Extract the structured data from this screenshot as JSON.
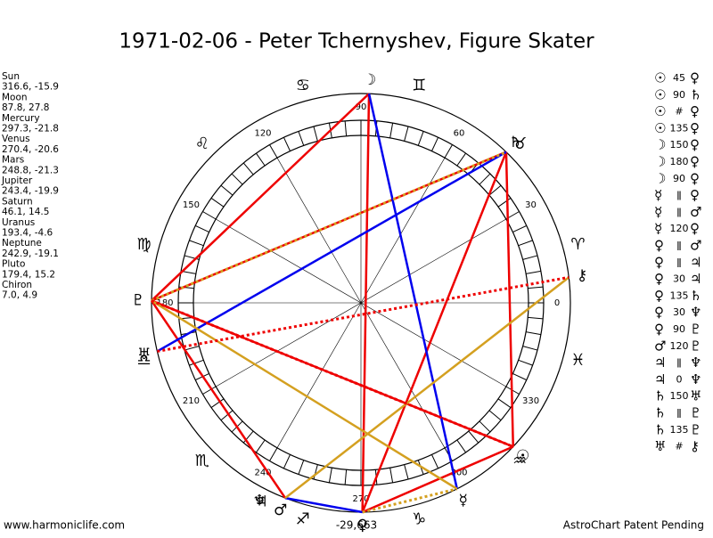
{
  "header": {
    "title": "1971-02-06 - Peter Tchernyshev, Figure Skater"
  },
  "positions": [
    {
      "name": "Sun",
      "value": "316.6, -15.9"
    },
    {
      "name": "Moon",
      "value": "87.8, 27.8"
    },
    {
      "name": "Mercury",
      "value": "297.3, -21.8"
    },
    {
      "name": "Venus",
      "value": "270.4, -20.6"
    },
    {
      "name": "Mars",
      "value": "248.8, -21.3"
    },
    {
      "name": "Jupiter",
      "value": "243.4, -19.9"
    },
    {
      "name": "Saturn",
      "value": "46.1, 14.5"
    },
    {
      "name": "Uranus",
      "value": "193.4, -4.6"
    },
    {
      "name": "Neptune",
      "value": "242.9, -19.1"
    },
    {
      "name": "Pluto",
      "value": "179.4, 15.2"
    },
    {
      "name": "Chiron",
      "value": "7.0, 4.9"
    }
  ],
  "aspects": [
    [
      "☉",
      "45",
      "♀"
    ],
    [
      "☉",
      "90",
      "♄"
    ],
    [
      "☉",
      "#",
      "♀"
    ],
    [
      "☉",
      "135",
      "♀"
    ],
    [
      "☽",
      "150",
      "♀"
    ],
    [
      "☽",
      "180",
      "♀"
    ],
    [
      "☽",
      "90",
      "♀"
    ],
    [
      "☿",
      "ǁ",
      "♀"
    ],
    [
      "☿",
      "ǁ",
      "♂"
    ],
    [
      "☿",
      "120",
      "♀"
    ],
    [
      "♀",
      "ǁ",
      "♂"
    ],
    [
      "♀",
      "ǁ",
      "♃"
    ],
    [
      "♀",
      "30",
      "♃"
    ],
    [
      "♀",
      "135",
      "♄"
    ],
    [
      "♀",
      "30",
      "♆"
    ],
    [
      "♀",
      "90",
      "♇"
    ],
    [
      "♂",
      "120",
      "♇"
    ],
    [
      "♃",
      "ǁ",
      "♆"
    ],
    [
      "♃",
      "0",
      "♆"
    ],
    [
      "♄",
      "150",
      "♅"
    ],
    [
      "♄",
      "ǁ",
      "♇"
    ],
    [
      "♄",
      "135",
      "♇"
    ],
    [
      "♅",
      "#",
      "⚷"
    ]
  ],
  "wheel": {
    "degrees": [
      "0",
      "30",
      "60",
      "90",
      "120",
      "150",
      "180",
      "210",
      "240",
      "270",
      "300",
      "330"
    ],
    "signs": [
      "♈",
      "♉",
      "♊",
      "♋",
      "♌",
      "♍",
      "♎",
      "♏",
      "♐",
      "♑",
      "♒",
      "♓"
    ],
    "planets": [
      "☉",
      "☽",
      "☿",
      "♀",
      "♂",
      "♃",
      "♄",
      "♅",
      "♆",
      "♇",
      "⚷"
    ]
  },
  "footer": {
    "left": "www.harmoniclife.com",
    "center": "-29,663",
    "right": "AstroChart Patent Pending"
  }
}
